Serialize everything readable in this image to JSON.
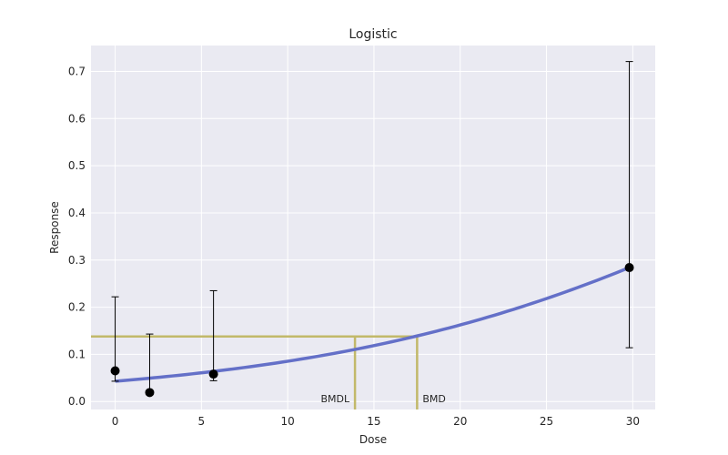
{
  "chart_data": {
    "type": "scatter",
    "title": "Logistic",
    "xlabel": "Dose",
    "ylabel": "Response",
    "xlim": [
      -1.4,
      31.3
    ],
    "ylim": [
      -0.017,
      0.755
    ],
    "xticks": [
      "0",
      "5",
      "10",
      "15",
      "20",
      "25",
      "30"
    ],
    "yticks": [
      "0.0",
      "0.1",
      "0.2",
      "0.3",
      "0.4",
      "0.5",
      "0.6",
      "0.7"
    ],
    "grid": true,
    "points": [
      {
        "x": 0,
        "y": 0.065,
        "err_low": 0.043,
        "err_high": 0.222
      },
      {
        "x": 2,
        "y": 0.019,
        "err_low": 0.019,
        "err_high": 0.143
      },
      {
        "x": 5.7,
        "y": 0.058,
        "err_low": 0.044,
        "err_high": 0.235
      },
      {
        "x": 29.8,
        "y": 0.284,
        "err_low": 0.114,
        "err_high": 0.721
      }
    ],
    "curve": {
      "model": "logistic",
      "x_range": [
        0,
        29.8
      ],
      "y_start": 0.043,
      "y_end": 0.284
    },
    "bmr_response": 0.138,
    "bmdl": 13.9,
    "bmd": 17.5,
    "annotations": {
      "bmdl_label": "BMDL",
      "bmd_label": "BMD"
    },
    "colors": {
      "plot_bg": "#EAEAF2",
      "grid": "#FFFFFF",
      "curve": "#6470C8",
      "points": "#000000",
      "bmd_lines": "#C2B96A"
    }
  }
}
